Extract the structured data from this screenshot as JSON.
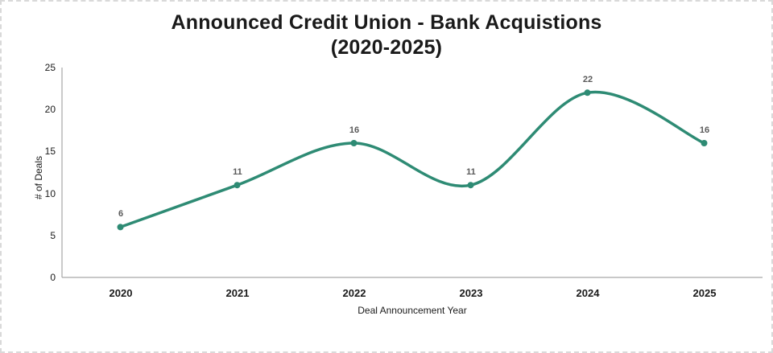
{
  "frame": {
    "border_color": "#d9d9d9",
    "background_color": "#ffffff",
    "text_color": "#1a1a1a"
  },
  "chart_data": {
    "type": "line",
    "title": "Announced Credit Union - Bank Acquistions (2020-2025)",
    "title_lines": [
      "Announced Credit Union - Bank Acquistions",
      "(2020-2025)"
    ],
    "categories": [
      "2020",
      "2021",
      "2022",
      "2023",
      "2024",
      "2025"
    ],
    "values": [
      6,
      11,
      16,
      11,
      22,
      16
    ],
    "data_labels": [
      "6",
      "11",
      "16",
      "11",
      "22",
      "16"
    ],
    "xlabel": "Deal Announcement Year",
    "ylabel": "# of Deals",
    "ylim": [
      0,
      25
    ],
    "y_ticks": [
      0,
      5,
      10,
      15,
      20,
      25
    ],
    "grid": false,
    "legend": "none",
    "smooth": true,
    "line_color": "#2e8b74",
    "marker_color": "#2e8b74",
    "data_label_color": "#595959",
    "axis_color": "#a6a6a6"
  }
}
